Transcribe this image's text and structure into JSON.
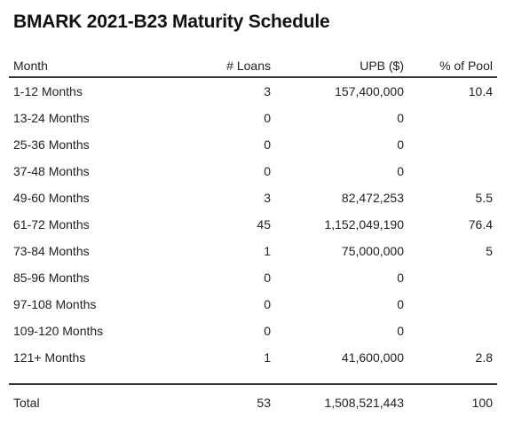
{
  "chart_data": {
    "type": "table",
    "title": "BMARK 2021-B23 Maturity Schedule",
    "columns": [
      "Month",
      "# Loans",
      "UPB ($)",
      "% of Pool"
    ],
    "rows": [
      {
        "month": "1-12 Months",
        "loans": "3",
        "upb": "157,400,000",
        "pool": "10.4"
      },
      {
        "month": "13-24 Months",
        "loans": "0",
        "upb": "0",
        "pool": ""
      },
      {
        "month": "25-36 Months",
        "loans": "0",
        "upb": "0",
        "pool": ""
      },
      {
        "month": "37-48 Months",
        "loans": "0",
        "upb": "0",
        "pool": ""
      },
      {
        "month": "49-60 Months",
        "loans": "3",
        "upb": "82,472,253",
        "pool": "5.5"
      },
      {
        "month": "61-72 Months",
        "loans": "45",
        "upb": "1,152,049,190",
        "pool": "76.4"
      },
      {
        "month": "73-84 Months",
        "loans": "1",
        "upb": "75,000,000",
        "pool": "5"
      },
      {
        "month": "85-96 Months",
        "loans": "0",
        "upb": "0",
        "pool": ""
      },
      {
        "month": "97-108 Months",
        "loans": "0",
        "upb": "0",
        "pool": ""
      },
      {
        "month": "109-120 Months",
        "loans": "0",
        "upb": "0",
        "pool": ""
      },
      {
        "month": "121+ Months",
        "loans": "1",
        "upb": "41,600,000",
        "pool": "2.8"
      }
    ],
    "total": {
      "label": "Total",
      "loans": "53",
      "upb": "1,508,521,443",
      "pool": "100"
    }
  }
}
